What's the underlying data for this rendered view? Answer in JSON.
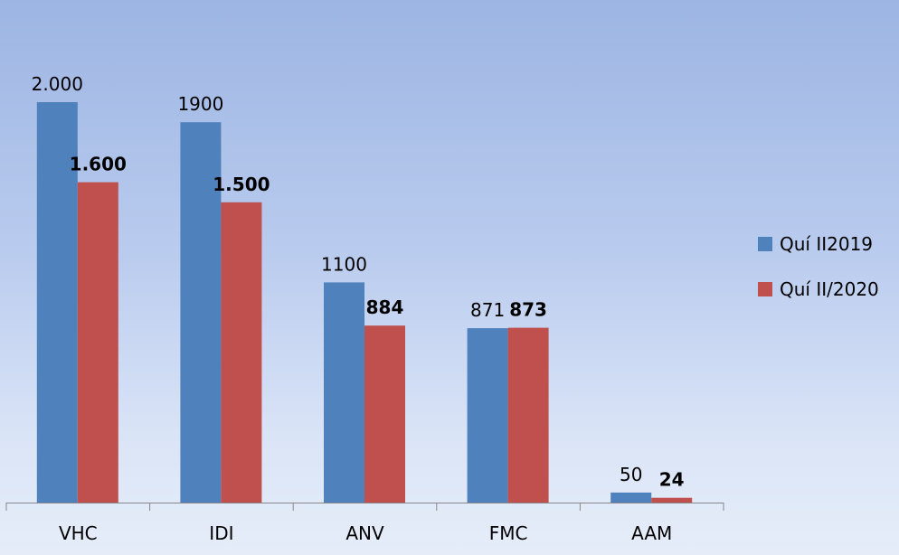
{
  "colors": {
    "series_a": "#4f81bd",
    "series_b": "#c0504d",
    "axis": "#888888"
  },
  "chart_data": {
    "type": "bar",
    "categories": [
      "VHC",
      "IDI",
      "ANV",
      "FMC",
      "AAM"
    ],
    "series": [
      {
        "name": "Quí II2019",
        "values": [
          2000,
          1900,
          1100,
          871,
          50
        ],
        "labels": [
          "2.000",
          "1900",
          "1100",
          "871",
          "50"
        ]
      },
      {
        "name": "Quí II/2020",
        "values": [
          1600,
          1500,
          884,
          873,
          24
        ],
        "labels": [
          "1.600",
          "1.500",
          "884",
          "873",
          "24"
        ]
      }
    ],
    "title": "",
    "xlabel": "",
    "ylabel": "",
    "ylim": [
      0,
      2000
    ],
    "grid": false,
    "legend_position": "right"
  }
}
